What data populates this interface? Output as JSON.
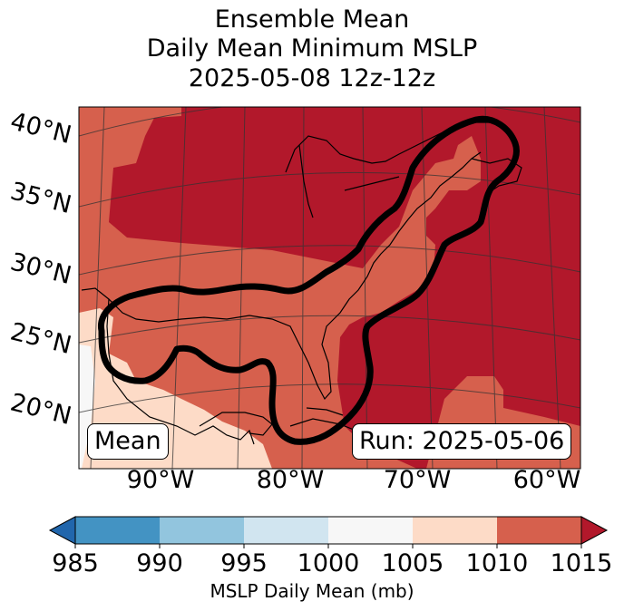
{
  "title": {
    "line1": "Ensemble Mean",
    "line2": "Daily Mean Minimum MSLP",
    "line3": "2025-05-08 12z-12z"
  },
  "map": {
    "lat_labels": [
      "40°N",
      "35°N",
      "30°N",
      "25°N",
      "20°N"
    ],
    "lon_labels": [
      "90°W",
      "80°W",
      "70°W",
      "60°W"
    ],
    "mean_box": "Mean",
    "run_box": "Run: 2025-05-06",
    "fill_colors": {
      "lt985": "#2166ac",
      "985_990": "#4393c3",
      "990_995": "#92c5de",
      "995_1000": "#d1e5f0",
      "1000_1005": "#f7f7f7",
      "1005_1010": "#fddbc7",
      "1010_1015": "#d6604d",
      "gt1015": "#b2182b"
    },
    "contour_color": "#000000"
  },
  "colorbar": {
    "ticks": [
      "985",
      "990",
      "995",
      "1000",
      "1005",
      "1010",
      "1015"
    ],
    "label": "MSLP Daily Mean (mb)",
    "colors": [
      "#4393c3",
      "#92c5de",
      "#d1e5f0",
      "#f7f7f7",
      "#fddbc7",
      "#d6604d"
    ],
    "under_color": "#2166ac",
    "over_color": "#b2182b"
  }
}
